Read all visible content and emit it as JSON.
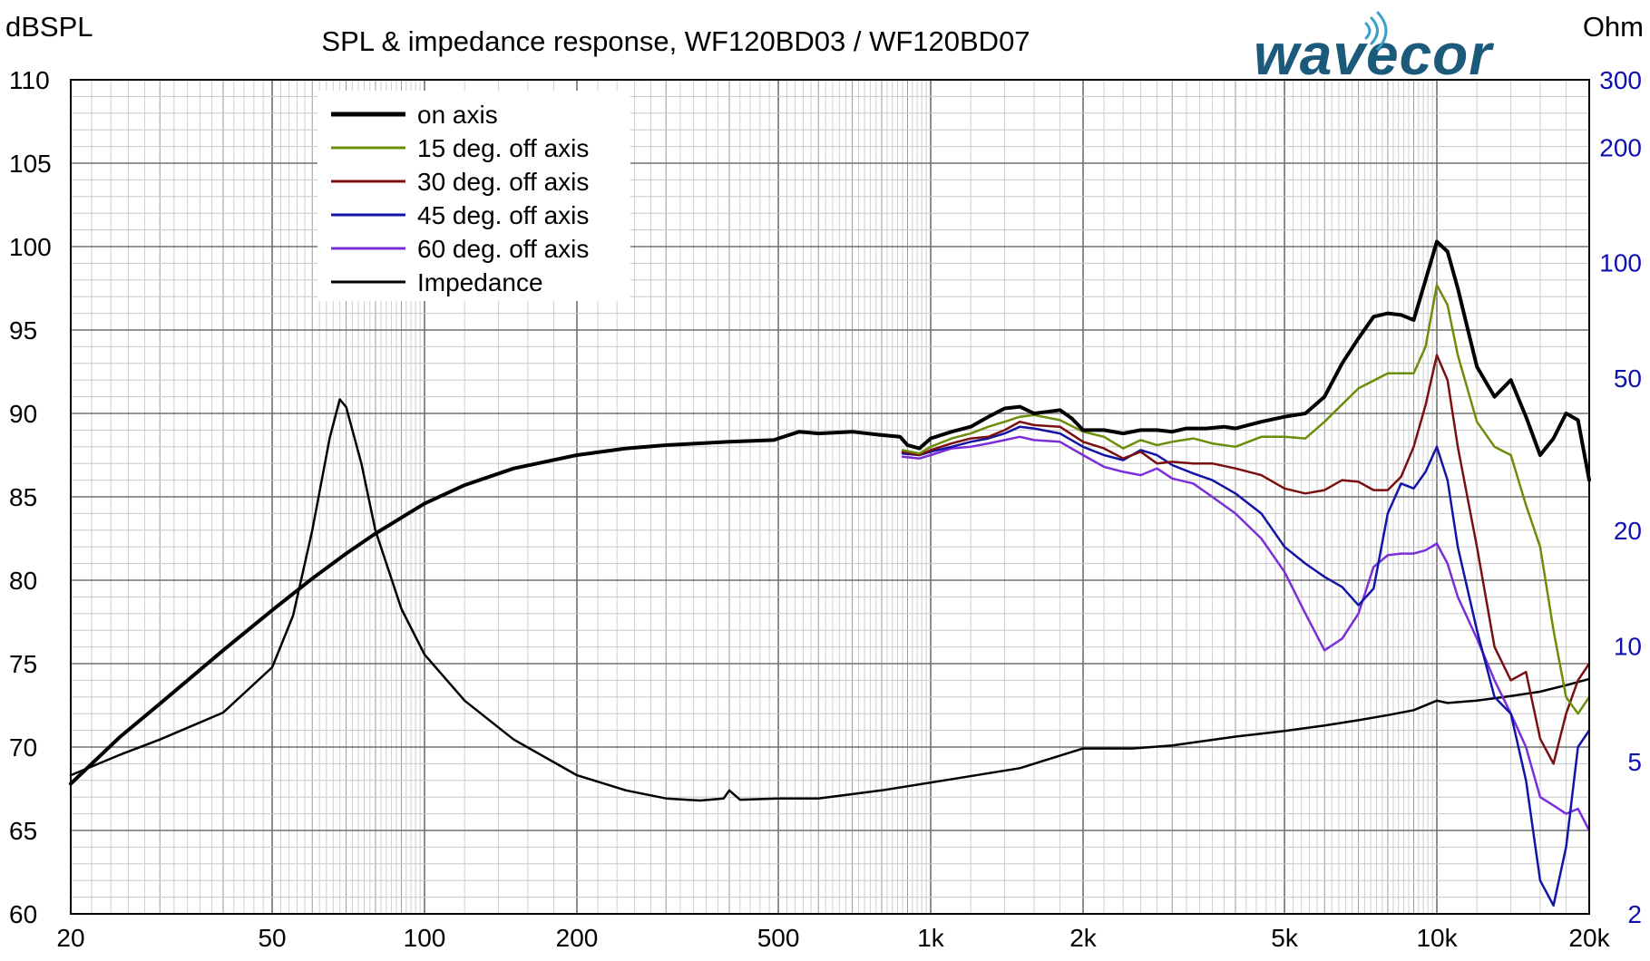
{
  "chart_data": {
    "type": "line",
    "title": "SPL & impedance response, WF120BD03 / WF120BD07",
    "ylabel_left": "dBSPL",
    "ylabel_right": "Ohm",
    "logo": "wavecor",
    "x_scale": "log",
    "xlim": [
      20,
      20000
    ],
    "ylim_left": [
      60,
      110
    ],
    "ylim_right": [
      2,
      300
    ],
    "y_right_scale": "log",
    "grid": true,
    "legend_position": "top-left",
    "x_ticks": [
      {
        "value": 20,
        "label": "20"
      },
      {
        "value": 50,
        "label": "50"
      },
      {
        "value": 100,
        "label": "100"
      },
      {
        "value": 200,
        "label": "200"
      },
      {
        "value": 500,
        "label": "500"
      },
      {
        "value": 1000,
        "label": "1k"
      },
      {
        "value": 2000,
        "label": "2k"
      },
      {
        "value": 5000,
        "label": "5k"
      },
      {
        "value": 10000,
        "label": "10k"
      },
      {
        "value": 20000,
        "label": "20k"
      }
    ],
    "y_left_ticks": [
      {
        "value": 110,
        "label": "110"
      },
      {
        "value": 105,
        "label": "105"
      },
      {
        "value": 100,
        "label": "100"
      },
      {
        "value": 95,
        "label": "95"
      },
      {
        "value": 90,
        "label": "90"
      },
      {
        "value": 85,
        "label": "85"
      },
      {
        "value": 80,
        "label": "80"
      },
      {
        "value": 75,
        "label": "75"
      },
      {
        "value": 70,
        "label": "70"
      },
      {
        "value": 65,
        "label": "65"
      },
      {
        "value": 60,
        "label": "60"
      }
    ],
    "y_right_ticks": [
      {
        "value": 300,
        "label": "300"
      },
      {
        "value": 200,
        "label": "200"
      },
      {
        "value": 100,
        "label": "100"
      },
      {
        "value": 50,
        "label": "50"
      },
      {
        "value": 20,
        "label": "20"
      },
      {
        "value": 10,
        "label": "10"
      },
      {
        "value": 5,
        "label": "5"
      },
      {
        "value": 2,
        "label": "2"
      }
    ],
    "series": [
      {
        "name": "on axis",
        "axis": "left",
        "color": "#000000",
        "width": 4,
        "points": [
          [
            20,
            67.8
          ],
          [
            25,
            70.6
          ],
          [
            30,
            72.6
          ],
          [
            40,
            75.8
          ],
          [
            50,
            78.2
          ],
          [
            60,
            80.1
          ],
          [
            70,
            81.6
          ],
          [
            80,
            82.8
          ],
          [
            100,
            84.6
          ],
          [
            120,
            85.7
          ],
          [
            150,
            86.7
          ],
          [
            200,
            87.5
          ],
          [
            250,
            87.9
          ],
          [
            300,
            88.1
          ],
          [
            400,
            88.3
          ],
          [
            490,
            88.4
          ],
          [
            500,
            88.5
          ],
          [
            550,
            88.9
          ],
          [
            600,
            88.8
          ],
          [
            700,
            88.9
          ],
          [
            800,
            88.7
          ],
          [
            870,
            88.6
          ],
          [
            900,
            88.1
          ],
          [
            950,
            87.9
          ],
          [
            1000,
            88.5
          ],
          [
            1100,
            88.9
          ],
          [
            1200,
            89.2
          ],
          [
            1300,
            89.8
          ],
          [
            1400,
            90.3
          ],
          [
            1500,
            90.4
          ],
          [
            1600,
            90.0
          ],
          [
            1700,
            90.1
          ],
          [
            1800,
            90.2
          ],
          [
            1900,
            89.7
          ],
          [
            2000,
            89.0
          ],
          [
            2200,
            89.0
          ],
          [
            2400,
            88.8
          ],
          [
            2600,
            89.0
          ],
          [
            2800,
            89.0
          ],
          [
            3000,
            88.9
          ],
          [
            3200,
            89.1
          ],
          [
            3500,
            89.1
          ],
          [
            3800,
            89.2
          ],
          [
            4000,
            89.1
          ],
          [
            4500,
            89.5
          ],
          [
            5000,
            89.8
          ],
          [
            5500,
            90.0
          ],
          [
            6000,
            91.0
          ],
          [
            6500,
            93.0
          ],
          [
            7000,
            94.5
          ],
          [
            7500,
            95.8
          ],
          [
            8000,
            96.0
          ],
          [
            8500,
            95.9
          ],
          [
            9000,
            95.6
          ],
          [
            9500,
            98.0
          ],
          [
            10000,
            100.3
          ],
          [
            10500,
            99.7
          ],
          [
            11000,
            97.5
          ],
          [
            12000,
            92.8
          ],
          [
            13000,
            91.0
          ],
          [
            14000,
            92.0
          ],
          [
            15000,
            89.8
          ],
          [
            16000,
            87.5
          ],
          [
            17000,
            88.5
          ],
          [
            18000,
            90.0
          ],
          [
            19000,
            89.6
          ],
          [
            20000,
            86.0
          ]
        ]
      },
      {
        "name": "15 deg. off axis",
        "axis": "left",
        "color": "#6b8e0a",
        "width": 2.5,
        "points": [
          [
            880,
            87.8
          ],
          [
            950,
            87.6
          ],
          [
            1000,
            88.0
          ],
          [
            1100,
            88.5
          ],
          [
            1200,
            88.8
          ],
          [
            1300,
            89.2
          ],
          [
            1400,
            89.5
          ],
          [
            1500,
            89.8
          ],
          [
            1600,
            89.9
          ],
          [
            1800,
            89.6
          ],
          [
            2000,
            88.9
          ],
          [
            2200,
            88.6
          ],
          [
            2400,
            87.9
          ],
          [
            2600,
            88.4
          ],
          [
            2800,
            88.1
          ],
          [
            3000,
            88.3
          ],
          [
            3300,
            88.5
          ],
          [
            3600,
            88.2
          ],
          [
            4000,
            88.0
          ],
          [
            4500,
            88.6
          ],
          [
            5000,
            88.6
          ],
          [
            5500,
            88.5
          ],
          [
            6000,
            89.5
          ],
          [
            7000,
            91.5
          ],
          [
            8000,
            92.4
          ],
          [
            9000,
            92.4
          ],
          [
            9500,
            94.0
          ],
          [
            10000,
            97.7
          ],
          [
            10500,
            96.5
          ],
          [
            11000,
            93.5
          ],
          [
            12000,
            89.5
          ],
          [
            13000,
            88.0
          ],
          [
            14000,
            87.5
          ],
          [
            15000,
            84.5
          ],
          [
            16000,
            82.0
          ],
          [
            17000,
            77.0
          ],
          [
            18000,
            73.0
          ],
          [
            19000,
            72.0
          ],
          [
            20000,
            73.0
          ]
        ]
      },
      {
        "name": "30 deg. off axis",
        "axis": "left",
        "color": "#7a0f0f",
        "width": 2.5,
        "points": [
          [
            880,
            87.7
          ],
          [
            950,
            87.5
          ],
          [
            1000,
            87.8
          ],
          [
            1100,
            88.2
          ],
          [
            1200,
            88.5
          ],
          [
            1300,
            88.6
          ],
          [
            1400,
            89.0
          ],
          [
            1500,
            89.5
          ],
          [
            1600,
            89.3
          ],
          [
            1800,
            89.2
          ],
          [
            2000,
            88.3
          ],
          [
            2200,
            87.9
          ],
          [
            2400,
            87.3
          ],
          [
            2600,
            87.7
          ],
          [
            2800,
            87.0
          ],
          [
            3000,
            87.1
          ],
          [
            3300,
            87.0
          ],
          [
            3600,
            87.0
          ],
          [
            4000,
            86.7
          ],
          [
            4500,
            86.3
          ],
          [
            5000,
            85.5
          ],
          [
            5500,
            85.2
          ],
          [
            6000,
            85.4
          ],
          [
            6500,
            86.0
          ],
          [
            7000,
            85.9
          ],
          [
            7500,
            85.4
          ],
          [
            8000,
            85.4
          ],
          [
            8500,
            86.2
          ],
          [
            9000,
            88.0
          ],
          [
            9500,
            90.5
          ],
          [
            10000,
            93.5
          ],
          [
            10500,
            92.0
          ],
          [
            11000,
            88.0
          ],
          [
            12000,
            82.0
          ],
          [
            13000,
            76.0
          ],
          [
            14000,
            74.0
          ],
          [
            15000,
            74.5
          ],
          [
            16000,
            70.5
          ],
          [
            17000,
            69.0
          ],
          [
            18000,
            72.0
          ],
          [
            19000,
            74.0
          ],
          [
            20000,
            75.0
          ]
        ]
      },
      {
        "name": "45 deg. off axis",
        "axis": "left",
        "color": "#1313a8",
        "width": 2.5,
        "points": [
          [
            880,
            87.6
          ],
          [
            950,
            87.5
          ],
          [
            1000,
            87.7
          ],
          [
            1100,
            88.0
          ],
          [
            1200,
            88.3
          ],
          [
            1300,
            88.5
          ],
          [
            1400,
            88.8
          ],
          [
            1500,
            89.2
          ],
          [
            1600,
            89.1
          ],
          [
            1800,
            88.8
          ],
          [
            2000,
            88.0
          ],
          [
            2200,
            87.5
          ],
          [
            2400,
            87.2
          ],
          [
            2600,
            87.8
          ],
          [
            2800,
            87.5
          ],
          [
            3000,
            86.9
          ],
          [
            3300,
            86.4
          ],
          [
            3600,
            86.0
          ],
          [
            4000,
            85.2
          ],
          [
            4500,
            84.0
          ],
          [
            5000,
            82.0
          ],
          [
            5500,
            81.0
          ],
          [
            6000,
            80.2
          ],
          [
            6500,
            79.6
          ],
          [
            7000,
            78.5
          ],
          [
            7500,
            79.5
          ],
          [
            8000,
            84.0
          ],
          [
            8500,
            85.8
          ],
          [
            9000,
            85.5
          ],
          [
            9500,
            86.5
          ],
          [
            10000,
            88.0
          ],
          [
            10500,
            86.0
          ],
          [
            11000,
            82.0
          ],
          [
            12000,
            77.0
          ],
          [
            13000,
            73.0
          ],
          [
            14000,
            72.0
          ],
          [
            15000,
            68.0
          ],
          [
            16000,
            62.0
          ],
          [
            17000,
            60.5
          ],
          [
            18000,
            64.0
          ],
          [
            19000,
            70.0
          ],
          [
            20000,
            71.0
          ]
        ]
      },
      {
        "name": "60 deg. off axis",
        "axis": "left",
        "color": "#7a2ed8",
        "width": 2.5,
        "points": [
          [
            880,
            87.4
          ],
          [
            950,
            87.3
          ],
          [
            1000,
            87.5
          ],
          [
            1100,
            87.9
          ],
          [
            1200,
            88.0
          ],
          [
            1300,
            88.2
          ],
          [
            1400,
            88.4
          ],
          [
            1500,
            88.6
          ],
          [
            1600,
            88.4
          ],
          [
            1800,
            88.3
          ],
          [
            2000,
            87.5
          ],
          [
            2200,
            86.8
          ],
          [
            2400,
            86.5
          ],
          [
            2600,
            86.3
          ],
          [
            2800,
            86.7
          ],
          [
            3000,
            86.1
          ],
          [
            3300,
            85.8
          ],
          [
            3600,
            85.0
          ],
          [
            4000,
            84.0
          ],
          [
            4500,
            82.5
          ],
          [
            5000,
            80.5
          ],
          [
            5500,
            78.0
          ],
          [
            6000,
            75.8
          ],
          [
            6500,
            76.5
          ],
          [
            7000,
            78.0
          ],
          [
            7500,
            80.8
          ],
          [
            8000,
            81.5
          ],
          [
            8500,
            81.6
          ],
          [
            9000,
            81.6
          ],
          [
            9500,
            81.8
          ],
          [
            10000,
            82.2
          ],
          [
            10500,
            81.0
          ],
          [
            11000,
            79.0
          ],
          [
            12000,
            76.5
          ],
          [
            13000,
            74.0
          ],
          [
            14000,
            72.0
          ],
          [
            15000,
            70.0
          ],
          [
            16000,
            67.0
          ],
          [
            17000,
            66.5
          ],
          [
            18000,
            66.0
          ],
          [
            19000,
            66.3
          ],
          [
            20000,
            65.0
          ]
        ]
      },
      {
        "name": "Impedance",
        "axis": "right",
        "color": "#000000",
        "width": 2.5,
        "points": [
          [
            20,
            4.6
          ],
          [
            25,
            5.2
          ],
          [
            30,
            5.7
          ],
          [
            40,
            6.7
          ],
          [
            50,
            8.8
          ],
          [
            55,
            12.0
          ],
          [
            60,
            20.0
          ],
          [
            65,
            35.0
          ],
          [
            68,
            44.0
          ],
          [
            70,
            42.0
          ],
          [
            75,
            30.0
          ],
          [
            80,
            20.0
          ],
          [
            90,
            12.5
          ],
          [
            100,
            9.5
          ],
          [
            120,
            7.2
          ],
          [
            150,
            5.7
          ],
          [
            200,
            4.6
          ],
          [
            250,
            4.2
          ],
          [
            300,
            4.0
          ],
          [
            350,
            3.95
          ],
          [
            390,
            4.0
          ],
          [
            400,
            4.2
          ],
          [
            420,
            3.97
          ],
          [
            500,
            4.0
          ],
          [
            600,
            4.0
          ],
          [
            800,
            4.2
          ],
          [
            1000,
            4.4
          ],
          [
            1500,
            4.8
          ],
          [
            2000,
            5.4
          ],
          [
            2500,
            5.4
          ],
          [
            3000,
            5.5
          ],
          [
            4000,
            5.8
          ],
          [
            5000,
            6.0
          ],
          [
            6000,
            6.2
          ],
          [
            7000,
            6.4
          ],
          [
            8000,
            6.6
          ],
          [
            9000,
            6.8
          ],
          [
            10000,
            7.2
          ],
          [
            10500,
            7.1
          ],
          [
            12000,
            7.2
          ],
          [
            14000,
            7.4
          ],
          [
            16000,
            7.6
          ],
          [
            18000,
            7.9
          ],
          [
            20000,
            8.2
          ]
        ]
      }
    ]
  }
}
